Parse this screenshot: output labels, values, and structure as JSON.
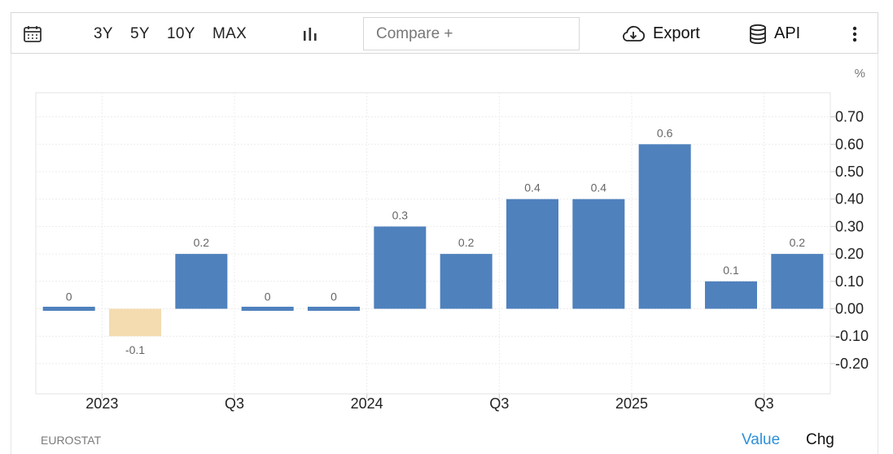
{
  "toolbar": {
    "range_buttons": [
      "3Y",
      "5Y",
      "10Y",
      "MAX"
    ],
    "compare_placeholder": "Compare +",
    "export_label": "Export",
    "api_label": "API"
  },
  "footer": {
    "source": "EUROSTAT",
    "value_label": "Value",
    "chg_label": "Chg"
  },
  "colors": {
    "positive_bar": "#4f81bd",
    "negative_bar": "#f4dcb0",
    "value_mode": "#2e8fd8"
  },
  "chart_data": {
    "type": "bar",
    "unit": "%",
    "values": [
      0,
      -0.1,
      0.2,
      0,
      0,
      0.3,
      0.2,
      0.4,
      0.4,
      0.6,
      0.1,
      0.2
    ],
    "x_tick_labels": [
      "2023",
      "Q3",
      "2024",
      "Q3",
      "2025",
      "Q3"
    ],
    "x_tick_positions": [
      1.5,
      3.5,
      5.5,
      7.5,
      9.5,
      11.5
    ],
    "y_ticks": [
      "0.70",
      "0.60",
      "0.50",
      "0.40",
      "0.30",
      "0.20",
      "0.10",
      "0.00",
      "-0.10",
      "-0.20"
    ],
    "ylim": [
      -0.3,
      0.8
    ],
    "grid": true
  }
}
